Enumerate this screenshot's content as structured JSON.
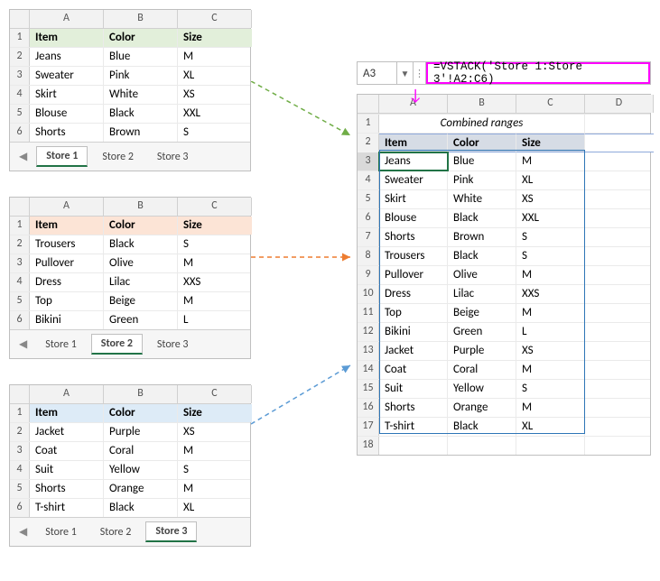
{
  "colors": {
    "store1_header_bg": "#e2efda",
    "store2_header_bg": "#fce4d6",
    "store3_header_bg": "#ddebf7",
    "combined_header_bg": "#d6dce5",
    "formula_highlight": "#ff00ff",
    "selection_green": "#217346",
    "spill_border": "#2e75b6",
    "arrow_green": "#70ad47",
    "arrow_orange": "#ed7d31",
    "arrow_blue": "#5b9bd5"
  },
  "columns": [
    "A",
    "B",
    "C"
  ],
  "columns_right": [
    "A",
    "B",
    "C",
    "D"
  ],
  "headers": {
    "item": "Item",
    "color": "Color",
    "size": "Size"
  },
  "tabs": {
    "s1": "Store 1",
    "s2": "Store 2",
    "s3": "Store 3"
  },
  "formula_bar": {
    "cell_ref": "A3",
    "formula": "=VSTACK('Store 1:Store 3'!A2:C6)"
  },
  "combined_title": "Combined ranges",
  "sheets": {
    "store1": {
      "rows": [
        {
          "item": "Jeans",
          "color": "Blue",
          "size": "M"
        },
        {
          "item": "Sweater",
          "color": "Pink",
          "size": "XL"
        },
        {
          "item": "Skirt",
          "color": "White",
          "size": "XS"
        },
        {
          "item": "Blouse",
          "color": "Black",
          "size": "XXL"
        },
        {
          "item": "Shorts",
          "color": "Brown",
          "size": "S"
        }
      ]
    },
    "store2": {
      "rows": [
        {
          "item": "Trousers",
          "color": "Black",
          "size": "S"
        },
        {
          "item": "Pullover",
          "color": "Olive",
          "size": "M"
        },
        {
          "item": "Dress",
          "color": "Lilac",
          "size": "XXS"
        },
        {
          "item": "Top",
          "color": "Beige",
          "size": "M"
        },
        {
          "item": "Bikini",
          "color": "Green",
          "size": "L"
        }
      ]
    },
    "store3": {
      "rows": [
        {
          "item": "Jacket",
          "color": "Purple",
          "size": "XS"
        },
        {
          "item": "Coat",
          "color": "Coral",
          "size": "M"
        },
        {
          "item": "Suit",
          "color": "Yellow",
          "size": "S"
        },
        {
          "item": "Shorts",
          "color": "Orange",
          "size": "M"
        },
        {
          "item": "T-shirt",
          "color": "Black",
          "size": "XL"
        }
      ]
    }
  },
  "combined": {
    "rows": [
      {
        "item": "Jeans",
        "color": "Blue",
        "size": "M"
      },
      {
        "item": "Sweater",
        "color": "Pink",
        "size": "XL"
      },
      {
        "item": "Skirt",
        "color": "White",
        "size": "XS"
      },
      {
        "item": "Blouse",
        "color": "Black",
        "size": "XXL"
      },
      {
        "item": "Shorts",
        "color": "Brown",
        "size": "S"
      },
      {
        "item": "Trousers",
        "color": "Black",
        "size": "S"
      },
      {
        "item": "Pullover",
        "color": "Olive",
        "size": "M"
      },
      {
        "item": "Dress",
        "color": "Lilac",
        "size": "XXS"
      },
      {
        "item": "Top",
        "color": "Beige",
        "size": "M"
      },
      {
        "item": "Bikini",
        "color": "Green",
        "size": "L"
      },
      {
        "item": "Jacket",
        "color": "Purple",
        "size": "XS"
      },
      {
        "item": "Coat",
        "color": "Coral",
        "size": "M"
      },
      {
        "item": "Suit",
        "color": "Yellow",
        "size": "S"
      },
      {
        "item": "Shorts",
        "color": "Orange",
        "size": "M"
      },
      {
        "item": "T-shirt",
        "color": "Black",
        "size": "XL"
      }
    ]
  }
}
